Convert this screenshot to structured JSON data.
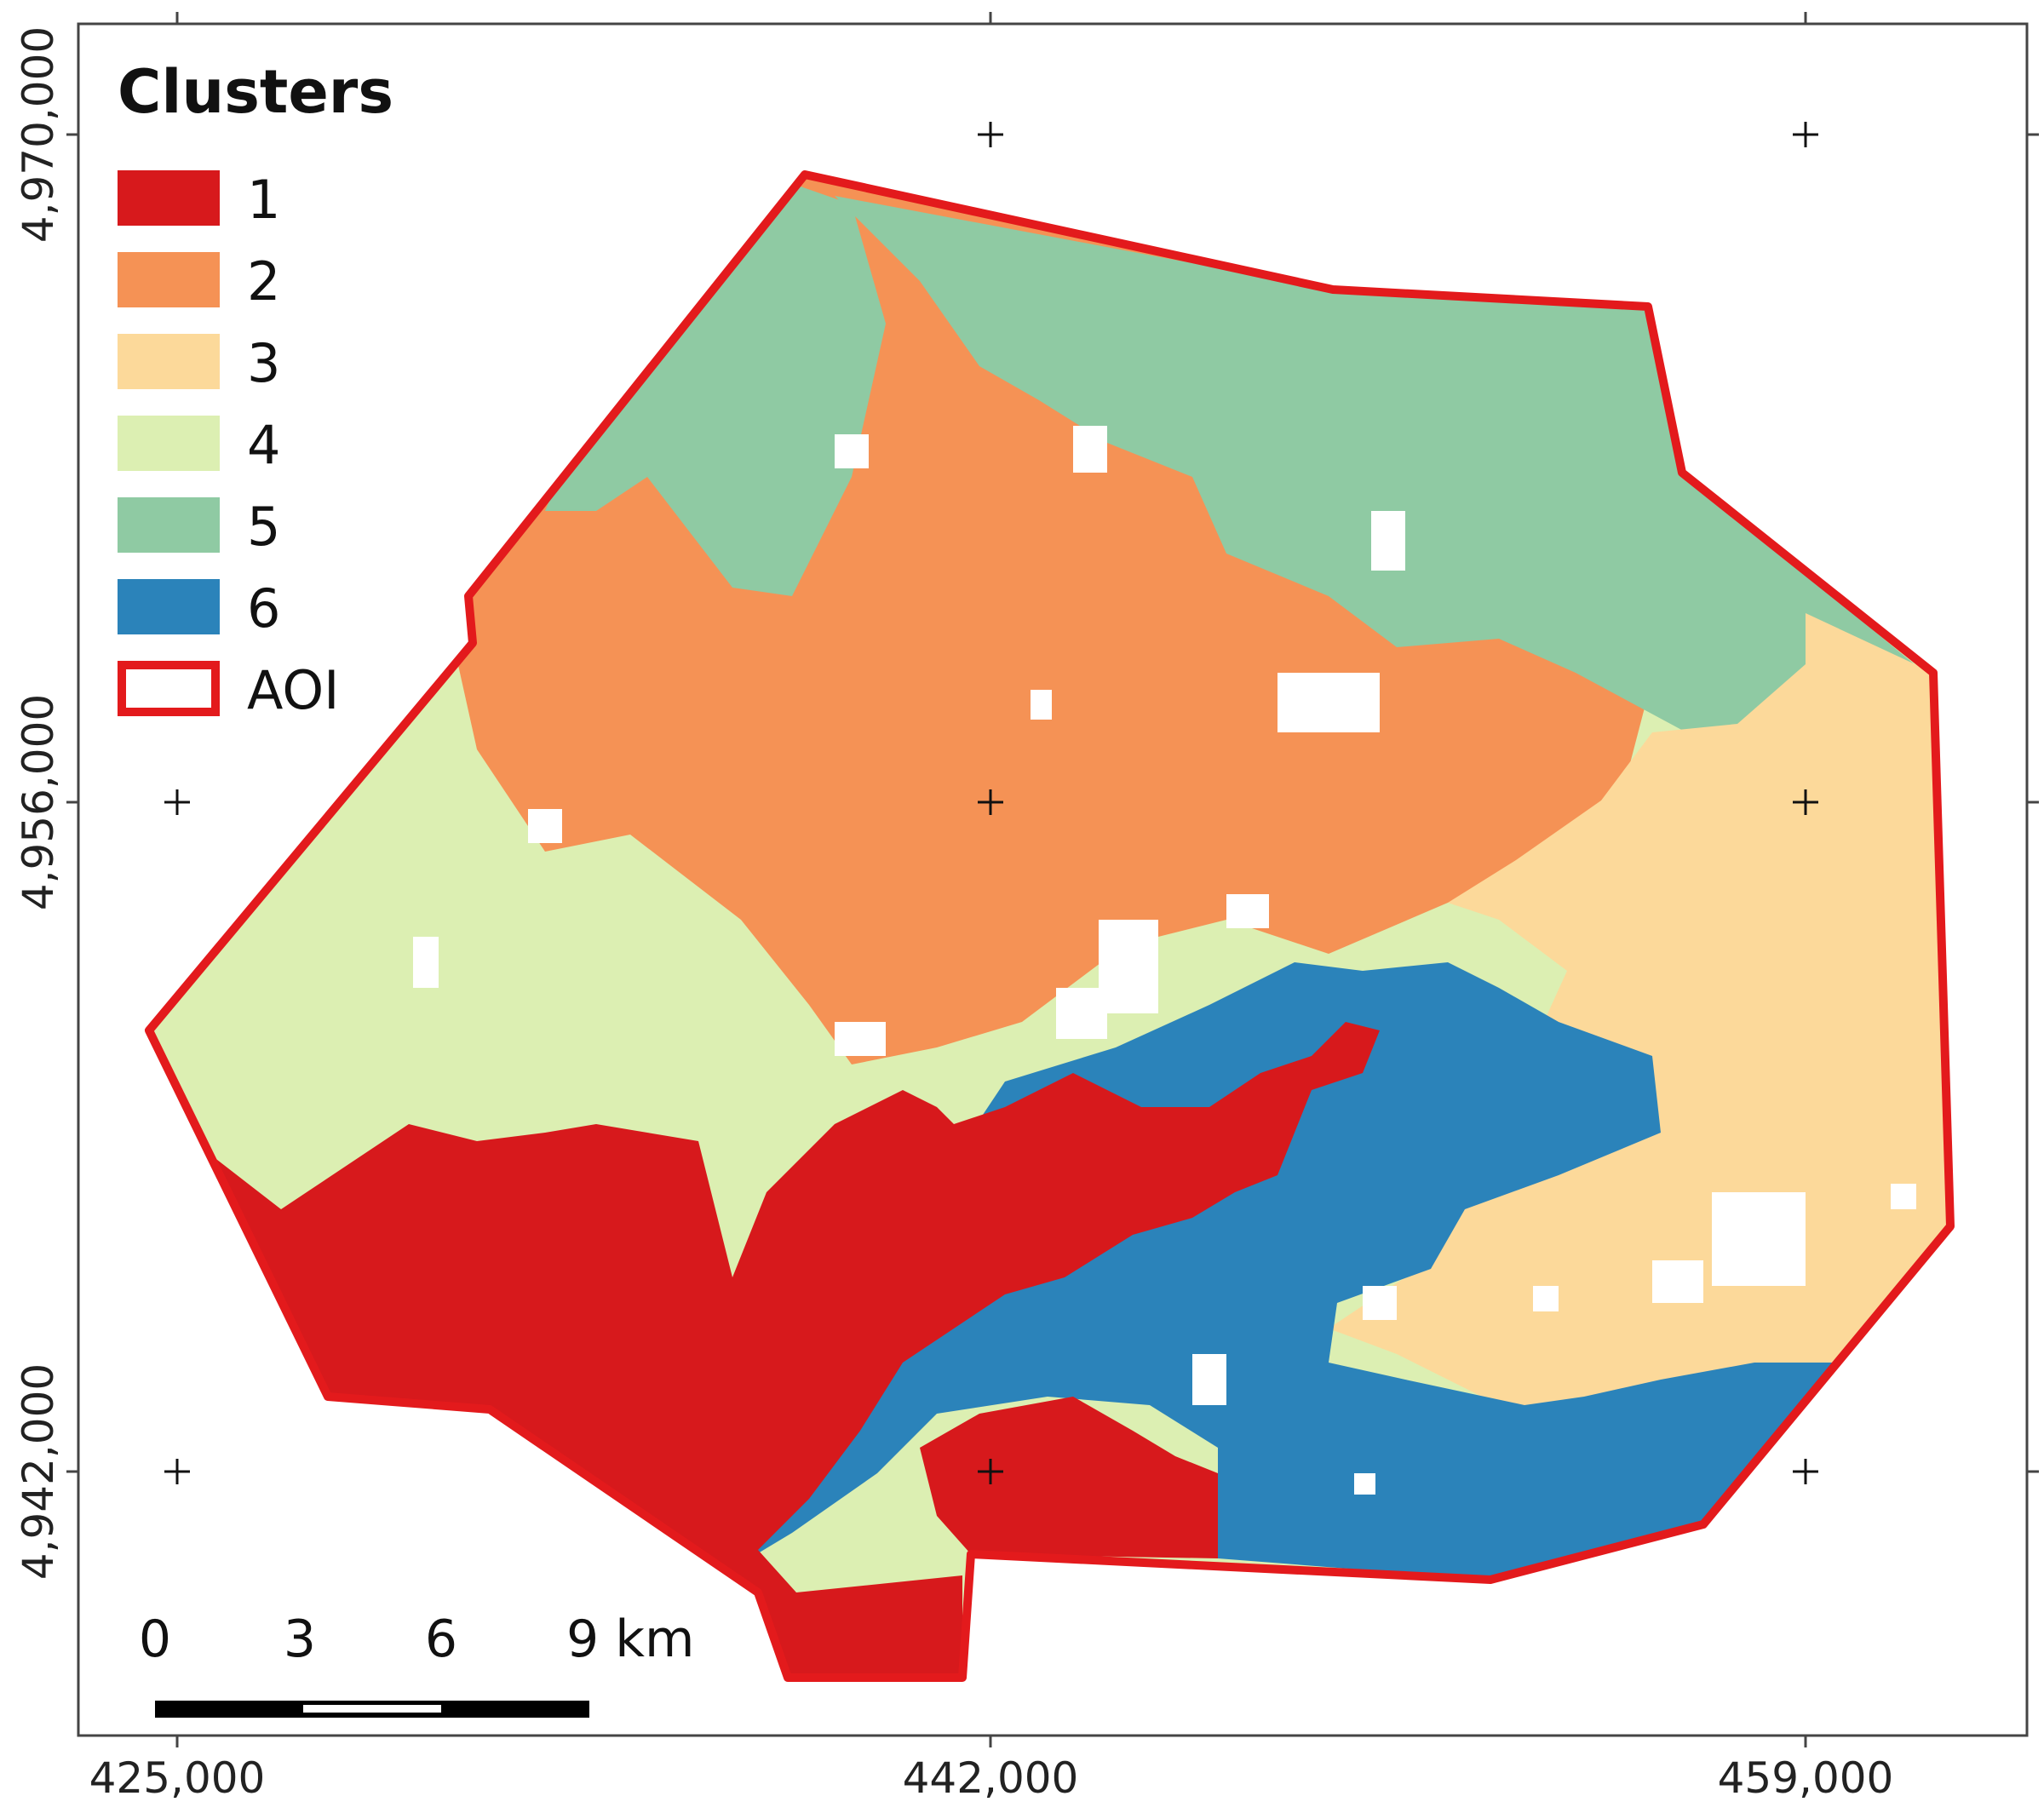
{
  "legend": {
    "title": "Clusters",
    "items": [
      {
        "label": "1",
        "color": "#d7191c"
      },
      {
        "label": "2",
        "color": "#f59255"
      },
      {
        "label": "3",
        "color": "#fcd99a"
      },
      {
        "label": "4",
        "color": "#dcefb2"
      },
      {
        "label": "5",
        "color": "#8fcaa3"
      },
      {
        "label": "6",
        "color": "#2b83ba"
      },
      {
        "label": "AOI",
        "color": "#e31a1c"
      }
    ]
  },
  "axes": {
    "x_labels": [
      "425,000",
      "442,000",
      "459,000"
    ],
    "y_labels": [
      "4,970,000",
      "4,956,000",
      "4,942,000"
    ]
  },
  "scalebar": {
    "labels": [
      "0",
      "3",
      "6",
      "9 km"
    ]
  }
}
